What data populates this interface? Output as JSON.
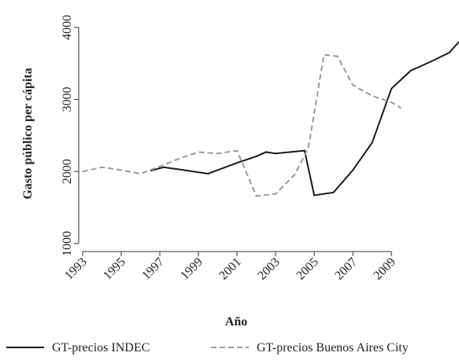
{
  "chart_data": {
    "type": "line",
    "x_label": "Año",
    "y_label": "Gasto público per cápita",
    "xlim": [
      1992.8,
      2012.5
    ],
    "xticks": [
      1993,
      1995,
      1997,
      1999,
      2001,
      2003,
      2005,
      2007,
      2009
    ],
    "ylim": [
      890,
      4380
    ],
    "yticks": [
      1000,
      2000,
      3000,
      4000
    ],
    "series": [
      {
        "name": "GT-precios INDEC",
        "color": "#1a1a1a",
        "dash": false,
        "x": [
          1996.5,
          1997.2,
          1998,
          1999.5,
          2001,
          2002,
          2002.5,
          2003,
          2004.5,
          2005,
          2006,
          2007,
          2008,
          2009,
          2010,
          2011,
          2012,
          2012.5
        ],
        "values": [
          2010,
          2060,
          2030,
          1970,
          2120,
          2210,
          2270,
          2250,
          2290,
          1670,
          1710,
          2020,
          2400,
          3150,
          3400,
          3520,
          3650,
          3800
        ]
      },
      {
        "name": "GT-precios Buenos Aires City",
        "color": "#999999",
        "dash": true,
        "x": [
          1993,
          1994,
          1995,
          1996,
          1997,
          1998,
          1999,
          2000,
          2001,
          2002,
          2003,
          2004,
          2004.7,
          2005.5,
          2006.2,
          2007,
          2008,
          2009,
          2009.5
        ],
        "values": [
          2000,
          2060,
          2020,
          1970,
          2070,
          2180,
          2270,
          2250,
          2290,
          1660,
          1690,
          1960,
          2330,
          3620,
          3600,
          3200,
          3050,
          2960,
          2880
        ]
      }
    ]
  }
}
